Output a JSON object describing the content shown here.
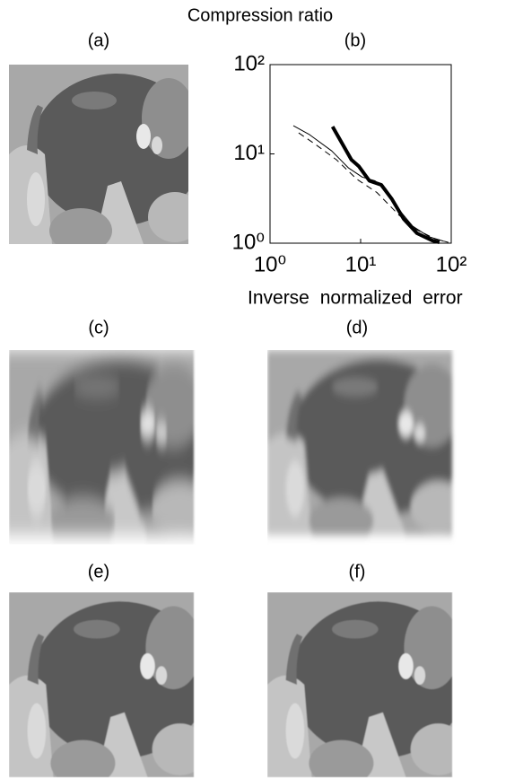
{
  "panels": [
    "(a)",
    "(b)",
    "(c)",
    "(d)",
    "(e)",
    "(f)"
  ],
  "chart_data": {
    "type": "line",
    "ylabel": "Compression ratio",
    "xlabel": "Inverse normalized error",
    "xscale": "log",
    "yscale": "log",
    "xlim": [
      1,
      100
    ],
    "ylim": [
      1,
      100
    ],
    "xticks": [
      {
        "value": 1,
        "label": "10⁰"
      },
      {
        "value": 10,
        "label": "10¹"
      },
      {
        "value": 100,
        "label": "10²"
      }
    ],
    "yticks": [
      {
        "value": 1,
        "label": "10⁰"
      },
      {
        "value": 10,
        "label": "10¹"
      },
      {
        "value": 100,
        "label": "10²"
      }
    ],
    "series": [
      {
        "color": "#000000",
        "line_width": 4,
        "dash": false,
        "x": [
          4.9,
          7.9,
          9.5,
          12.5,
          16.9,
          22.2,
          29.9,
          42,
          62,
          74
        ],
        "values": [
          20.2,
          8.6,
          7.3,
          5.0,
          4.5,
          3.1,
          1.87,
          1.29,
          1.07,
          1.02
        ]
      },
      {
        "color": "#000000",
        "line_width": 1,
        "dash": false,
        "x": [
          1.81,
          2.73,
          4.8,
          7.3,
          10.4,
          14.4,
          18.9,
          26.7,
          37.6,
          56.8,
          83
        ],
        "values": [
          20.7,
          16.4,
          10.8,
          7.0,
          5.5,
          5.0,
          4.1,
          2.35,
          1.55,
          1.18,
          1.05
        ]
      },
      {
        "color": "#000000",
        "line_width": 1,
        "dash": true,
        "x": [
          2.07,
          3.06,
          5.4,
          9.1,
          15.1,
          26.7,
          42,
          66,
          93
        ],
        "values": [
          17.2,
          13.1,
          8.6,
          5.2,
          3.7,
          2.05,
          1.41,
          1.12,
          1.02
        ]
      }
    ]
  }
}
